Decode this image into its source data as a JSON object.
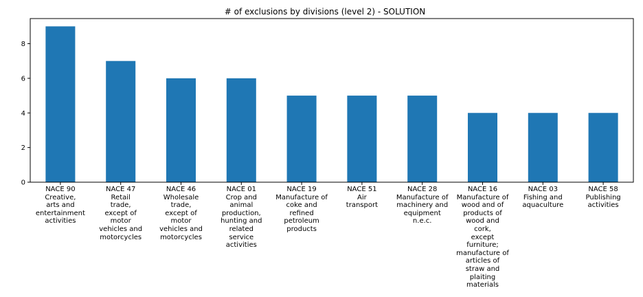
{
  "chart_data": {
    "type": "bar",
    "title": "# of exclusions by divisions (level 2) - SOLUTION",
    "xlabel": "",
    "ylabel": "",
    "ylim": [
      0,
      9.45
    ],
    "yticks": [
      0,
      2,
      4,
      6,
      8
    ],
    "grid": false,
    "bar_color": "#1f77b4",
    "categories": [
      "NACE 90\nCreative,\narts and\nentertainment\nactivities",
      "NACE 47\nRetail\ntrade,\nexcept of\nmotor\nvehicles and\nmotorcycles",
      "NACE 46\nWholesale\ntrade,\nexcept of\nmotor\nvehicles and\nmotorcycles",
      "NACE 01\nCrop and\nanimal\nproduction,\nhunting and\nrelated\nservice\nactivities",
      "NACE 19\nManufacture of\ncoke and\nrefined\npetroleum\nproducts",
      "NACE 51\nAir\ntransport",
      "NACE 28\nManufacture of\nmachinery and\nequipment\nn.e.c.",
      "NACE 16\nManufacture of\nwood and of\nproducts of\nwood and\ncork,\nexcept\nfurniture;\nmanufacture of\narticles of\nstraw and\nplaiting\nmaterials",
      "NACE 03\nFishing and\naquaculture",
      "NACE 58\nPublishing\nactivities"
    ],
    "values": [
      9,
      7,
      6,
      6,
      5,
      5,
      5,
      4,
      4,
      4
    ]
  }
}
